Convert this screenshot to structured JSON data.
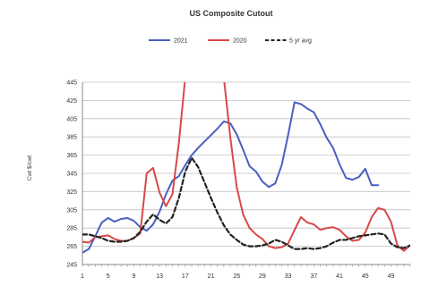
{
  "chart_data": {
    "type": "line",
    "title": "US Composite Cutout",
    "xlabel": "",
    "ylabel": "Cwt $/cwt",
    "ylim": [
      245,
      445
    ],
    "yticks": [
      245,
      265,
      285,
      305,
      325,
      345,
      365,
      385,
      405,
      425,
      445
    ],
    "xticks": [
      1,
      5,
      9,
      13,
      17,
      21,
      25,
      29,
      33,
      37,
      41,
      45,
      49
    ],
    "xlim": [
      1,
      52
    ],
    "grid": true,
    "legend_position": "top-center",
    "series": [
      {
        "name": "2021",
        "color": "#4a5fc1",
        "dash": "solid",
        "x": [
          1,
          2,
          3,
          4,
          5,
          6,
          7,
          8,
          9,
          10,
          11,
          12,
          13,
          14,
          15,
          16,
          17,
          18,
          19,
          20,
          21,
          22,
          23,
          24,
          25,
          26,
          27,
          28,
          29,
          30,
          31,
          32,
          33,
          34,
          35,
          36,
          37,
          38,
          39,
          40,
          41,
          42,
          43,
          44,
          45,
          46,
          47
        ],
        "y": [
          258,
          262,
          276,
          291,
          296,
          292,
          295,
          296,
          293,
          286,
          282,
          289,
          303,
          322,
          337,
          342,
          354,
          365,
          373,
          380,
          387,
          394,
          402,
          400,
          388,
          371,
          353,
          347,
          336,
          330,
          334,
          354,
          387,
          423,
          421,
          416,
          412,
          399,
          384,
          373,
          355,
          340,
          338,
          341,
          350,
          332,
          332
        ]
      },
      {
        "name": "2020",
        "color": "#d94848",
        "dash": "solid",
        "x": [
          1,
          2,
          3,
          4,
          5,
          6,
          7,
          8,
          9,
          10,
          11,
          12,
          13,
          14,
          15,
          16,
          17,
          18,
          19,
          20,
          21,
          22,
          23,
          24,
          25,
          26,
          27,
          28,
          29,
          30,
          31,
          32,
          33,
          34,
          35,
          36,
          37,
          38,
          39,
          40,
          41,
          42,
          43,
          44,
          45,
          46,
          47,
          48,
          49,
          50,
          51,
          52
        ],
        "y": [
          270,
          269,
          275,
          276,
          277,
          273,
          271,
          271,
          274,
          279,
          345,
          351,
          324,
          309,
          322,
          378,
          450,
          450,
          450,
          450,
          450,
          450,
          450,
          385,
          330,
          300,
          285,
          278,
          273,
          265,
          263,
          264,
          268,
          283,
          297,
          291,
          289,
          283,
          285,
          286,
          283,
          276,
          271,
          272,
          280,
          297,
          307,
          305,
          292,
          266,
          260,
          266
        ]
      },
      {
        "name": "5 yr avg",
        "color": "#222222",
        "dash": "dashed",
        "x": [
          1,
          2,
          3,
          4,
          5,
          6,
          7,
          8,
          9,
          10,
          11,
          12,
          13,
          14,
          15,
          16,
          17,
          18,
          19,
          20,
          21,
          22,
          23,
          24,
          25,
          26,
          27,
          28,
          29,
          30,
          31,
          32,
          33,
          34,
          35,
          36,
          37,
          38,
          39,
          40,
          41,
          42,
          43,
          44,
          45,
          46,
          47,
          48,
          49,
          50,
          51,
          52
        ],
        "y": [
          278,
          278,
          276,
          274,
          271,
          270,
          270,
          271,
          274,
          281,
          292,
          300,
          294,
          290,
          297,
          318,
          347,
          362,
          352,
          335,
          318,
          302,
          288,
          278,
          272,
          267,
          265,
          265,
          266,
          268,
          272,
          270,
          266,
          262,
          262,
          263,
          262,
          263,
          265,
          269,
          272,
          272,
          274,
          276,
          277,
          278,
          279,
          278,
          268,
          264,
          263,
          266
        ]
      }
    ]
  }
}
